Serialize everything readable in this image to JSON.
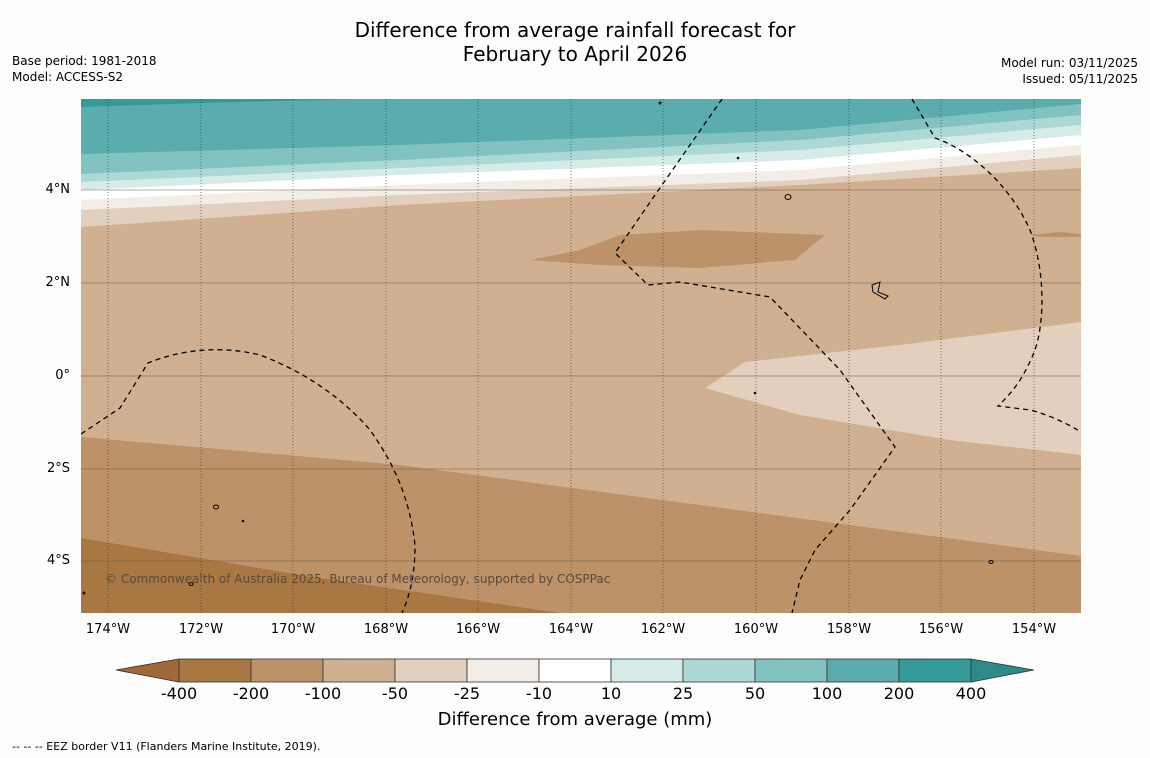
{
  "title": {
    "line1": "Difference from average rainfall forecast for",
    "line2": "February to April 2026"
  },
  "meta": {
    "base_period": "Base period: 1981-2018",
    "model": "Model: ACCESS-S2",
    "model_run": "Model run: 03/11/2025",
    "issued": "Issued: 05/11/2025"
  },
  "axes": {
    "lat_labels": [
      "4°N",
      "2°N",
      "0°",
      "2°S",
      "4°S"
    ],
    "lon_labels": [
      "174°W",
      "172°W",
      "170°W",
      "168°W",
      "166°W",
      "164°W",
      "162°W",
      "160°W",
      "158°W",
      "156°W",
      "154°W"
    ]
  },
  "colorbar": {
    "ticks": [
      "-400",
      "-200",
      "-100",
      "-50",
      "-25",
      "-10",
      "10",
      "25",
      "50",
      "100",
      "200",
      "400"
    ],
    "colors": [
      "#a97741",
      "#bd9268",
      "#d1b091",
      "#e2cfbd",
      "#f2ede6",
      "#ffffff",
      "#d5ebe8",
      "#acd8d5",
      "#82c3c2",
      "#5aacad",
      "#339999",
      "#2d8a8a"
    ],
    "label": "Difference from average (mm)"
  },
  "copyright": "© Commonwealth of Australia 2025, Bureau of Meteorology, supported by COSPPac",
  "footer": "--  --  -- EEZ border V11 (Flanders Marine Institute, 2019)."
}
